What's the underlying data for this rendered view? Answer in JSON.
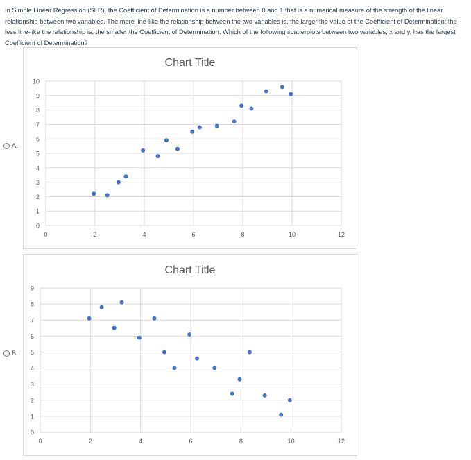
{
  "question": {
    "text": "In Simple Linear Regression (SLR), the Coefficient of Determination is a number between 0 and 1 that is a numerical measure of the strength of the linear relationship between two variables. The more line-like the relationship between the two variables is, the larger the value of the Coefficient of Determination; the less line-like the relationship is, the smaller the Coefficient of Determination. Which of the following scatterplots between two variables, x and y, has the largest Coefficient of Determination?"
  },
  "options": [
    {
      "letter": "A.",
      "selected": false
    },
    {
      "letter": "B.",
      "selected": false
    }
  ],
  "colors": {
    "point": "#4472c4",
    "grid": "#d9d9d9",
    "tick_text": "#595959",
    "title_text": "#595959"
  },
  "chart_data": [
    {
      "type": "scatter",
      "title": "Chart Title",
      "xlabel": "",
      "ylabel": "",
      "xlim": [
        0,
        12
      ],
      "ylim": [
        0,
        10
      ],
      "xticks": [
        0,
        2,
        4,
        6,
        8,
        10,
        12
      ],
      "yticks": [
        0,
        1,
        2,
        3,
        4,
        5,
        6,
        7,
        8,
        9,
        10
      ],
      "grid": true,
      "legend": "none",
      "points": [
        [
          1.95,
          2.2
        ],
        [
          2.5,
          2.1
        ],
        [
          2.95,
          3.0
        ],
        [
          3.25,
          3.4
        ],
        [
          3.95,
          5.2
        ],
        [
          4.55,
          4.8
        ],
        [
          4.9,
          5.9
        ],
        [
          5.35,
          5.3
        ],
        [
          5.95,
          6.5
        ],
        [
          6.25,
          6.8
        ],
        [
          6.95,
          6.9
        ],
        [
          7.65,
          7.2
        ],
        [
          7.95,
          8.3
        ],
        [
          8.35,
          8.1
        ],
        [
          8.95,
          9.3
        ],
        [
          9.6,
          9.6
        ],
        [
          9.95,
          9.1
        ]
      ]
    },
    {
      "type": "scatter",
      "title": "Chart Title",
      "xlabel": "",
      "ylabel": "",
      "xlim": [
        0,
        12
      ],
      "ylim": [
        0,
        9
      ],
      "xticks": [
        0,
        2,
        4,
        6,
        8,
        10,
        12
      ],
      "yticks": [
        0,
        1,
        2,
        3,
        4,
        5,
        6,
        7,
        8,
        9
      ],
      "grid": true,
      "legend": "none",
      "points": [
        [
          1.95,
          7.1
        ],
        [
          2.45,
          7.8
        ],
        [
          2.95,
          6.5
        ],
        [
          3.25,
          8.1
        ],
        [
          3.95,
          5.9
        ],
        [
          4.55,
          7.1
        ],
        [
          4.95,
          5.0
        ],
        [
          5.35,
          4.0
        ],
        [
          5.95,
          6.1
        ],
        [
          6.25,
          4.6
        ],
        [
          6.95,
          4.0
        ],
        [
          7.65,
          2.4
        ],
        [
          7.95,
          3.3
        ],
        [
          8.35,
          5.0
        ],
        [
          8.95,
          2.3
        ],
        [
          9.6,
          1.1
        ],
        [
          9.95,
          2.0
        ]
      ]
    }
  ]
}
